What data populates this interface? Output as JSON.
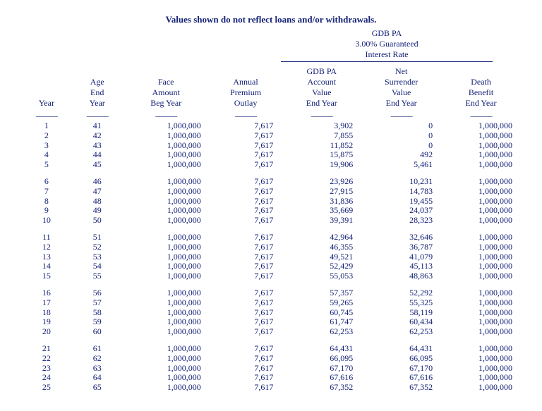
{
  "title": "Values shown do not reflect loans and/or withdrawals.",
  "sup_header_line1": "GDB PA",
  "sup_header_line2": "3.00% Guaranteed",
  "sup_header_line3": "Interest Rate",
  "columns": [
    {
      "l1": "",
      "l2": "",
      "l3": "Year"
    },
    {
      "l1": "Age",
      "l2": "End",
      "l3": "Year"
    },
    {
      "l1": "Face",
      "l2": "Amount",
      "l3": "Beg Year"
    },
    {
      "l1": "Annual",
      "l2": "Premium",
      "l3": "Outlay"
    },
    {
      "l1": "GDB PA",
      "l2": "Account",
      "l3": "Value",
      "l4": "End Year"
    },
    {
      "l1": "Net",
      "l2": "Surrender",
      "l3": "Value",
      "l4": "End Year"
    },
    {
      "l1": "Death",
      "l2": "Benefit",
      "l3": "End Year"
    }
  ],
  "dash": "______",
  "groups": [
    [
      {
        "year": "1",
        "age": "41",
        "face": "1,000,000",
        "premium": "7,617",
        "acct": "3,902",
        "surr": "0",
        "death": "1,000,000"
      },
      {
        "year": "2",
        "age": "42",
        "face": "1,000,000",
        "premium": "7,617",
        "acct": "7,855",
        "surr": "0",
        "death": "1,000,000"
      },
      {
        "year": "3",
        "age": "43",
        "face": "1,000,000",
        "premium": "7,617",
        "acct": "11,852",
        "surr": "0",
        "death": "1,000,000"
      },
      {
        "year": "4",
        "age": "44",
        "face": "1,000,000",
        "premium": "7,617",
        "acct": "15,875",
        "surr": "492",
        "death": "1,000,000"
      },
      {
        "year": "5",
        "age": "45",
        "face": "1,000,000",
        "premium": "7,617",
        "acct": "19,906",
        "surr": "5,461",
        "death": "1,000,000"
      }
    ],
    [
      {
        "year": "6",
        "age": "46",
        "face": "1,000,000",
        "premium": "7,617",
        "acct": "23,926",
        "surr": "10,231",
        "death": "1,000,000"
      },
      {
        "year": "7",
        "age": "47",
        "face": "1,000,000",
        "premium": "7,617",
        "acct": "27,915",
        "surr": "14,783",
        "death": "1,000,000"
      },
      {
        "year": "8",
        "age": "48",
        "face": "1,000,000",
        "premium": "7,617",
        "acct": "31,836",
        "surr": "19,455",
        "death": "1,000,000"
      },
      {
        "year": "9",
        "age": "49",
        "face": "1,000,000",
        "premium": "7,617",
        "acct": "35,669",
        "surr": "24,037",
        "death": "1,000,000"
      },
      {
        "year": "10",
        "age": "50",
        "face": "1,000,000",
        "premium": "7,617",
        "acct": "39,391",
        "surr": "28,323",
        "death": "1,000,000"
      }
    ],
    [
      {
        "year": "11",
        "age": "51",
        "face": "1,000,000",
        "premium": "7,617",
        "acct": "42,964",
        "surr": "32,646",
        "death": "1,000,000"
      },
      {
        "year": "12",
        "age": "52",
        "face": "1,000,000",
        "premium": "7,617",
        "acct": "46,355",
        "surr": "36,787",
        "death": "1,000,000"
      },
      {
        "year": "13",
        "age": "53",
        "face": "1,000,000",
        "premium": "7,617",
        "acct": "49,521",
        "surr": "41,079",
        "death": "1,000,000"
      },
      {
        "year": "14",
        "age": "54",
        "face": "1,000,000",
        "premium": "7,617",
        "acct": "52,429",
        "surr": "45,113",
        "death": "1,000,000"
      },
      {
        "year": "15",
        "age": "55",
        "face": "1,000,000",
        "premium": "7,617",
        "acct": "55,053",
        "surr": "48,863",
        "death": "1,000,000"
      }
    ],
    [
      {
        "year": "16",
        "age": "56",
        "face": "1,000,000",
        "premium": "7,617",
        "acct": "57,357",
        "surr": "52,292",
        "death": "1,000,000"
      },
      {
        "year": "17",
        "age": "57",
        "face": "1,000,000",
        "premium": "7,617",
        "acct": "59,265",
        "surr": "55,325",
        "death": "1,000,000"
      },
      {
        "year": "18",
        "age": "58",
        "face": "1,000,000",
        "premium": "7,617",
        "acct": "60,745",
        "surr": "58,119",
        "death": "1,000,000"
      },
      {
        "year": "19",
        "age": "59",
        "face": "1,000,000",
        "premium": "7,617",
        "acct": "61,747",
        "surr": "60,434",
        "death": "1,000,000"
      },
      {
        "year": "20",
        "age": "60",
        "face": "1,000,000",
        "premium": "7,617",
        "acct": "62,253",
        "surr": "62,253",
        "death": "1,000,000"
      }
    ],
    [
      {
        "year": "21",
        "age": "61",
        "face": "1,000,000",
        "premium": "7,617",
        "acct": "64,431",
        "surr": "64,431",
        "death": "1,000,000"
      },
      {
        "year": "22",
        "age": "62",
        "face": "1,000,000",
        "premium": "7,617",
        "acct": "66,095",
        "surr": "66,095",
        "death": "1,000,000"
      },
      {
        "year": "23",
        "age": "63",
        "face": "1,000,000",
        "premium": "7,617",
        "acct": "67,170",
        "surr": "67,170",
        "death": "1,000,000"
      },
      {
        "year": "24",
        "age": "64",
        "face": "1,000,000",
        "premium": "7,617",
        "acct": "67,616",
        "surr": "67,616",
        "death": "1,000,000"
      },
      {
        "year": "25",
        "age": "65",
        "face": "1,000,000",
        "premium": "7,617",
        "acct": "67,352",
        "surr": "67,352",
        "death": "1,000,000"
      }
    ]
  ],
  "text_color": "#132077",
  "background_color": "#ffffff",
  "font_family": "Times New Roman"
}
